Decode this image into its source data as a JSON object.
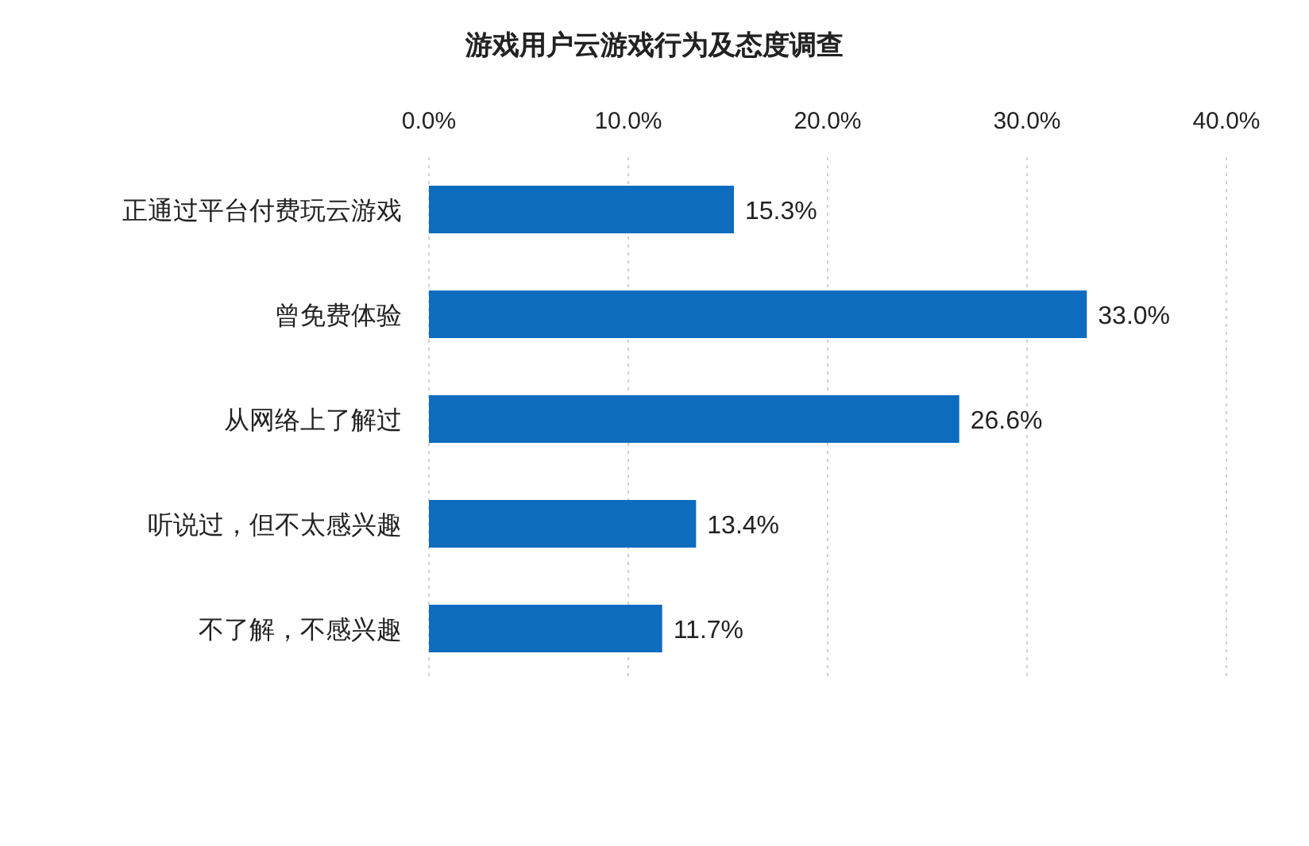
{
  "chart_data": {
    "type": "bar",
    "orientation": "horizontal",
    "title": "游戏用户云游戏行为及态度调查",
    "categories": [
      "正通过平台付费玩云游戏",
      "曾免费体验",
      "从网络上了解过",
      "听说过，但不太感兴趣",
      "不了解，不感兴趣"
    ],
    "values": [
      15.3,
      33.0,
      26.6,
      13.4,
      11.7
    ],
    "value_labels": [
      "15.3%",
      "33.0%",
      "26.6%",
      "13.4%",
      "11.7%"
    ],
    "color": "#0e6cbf",
    "xlim": [
      0,
      40
    ],
    "xticks": [
      {
        "value": 0,
        "label": "0.0%"
      },
      {
        "value": 10,
        "label": "10.0%"
      },
      {
        "value": 20,
        "label": "20.0%"
      },
      {
        "value": 30,
        "label": "30.0%"
      },
      {
        "value": 40,
        "label": "40.0%"
      }
    ],
    "grid": "x"
  }
}
